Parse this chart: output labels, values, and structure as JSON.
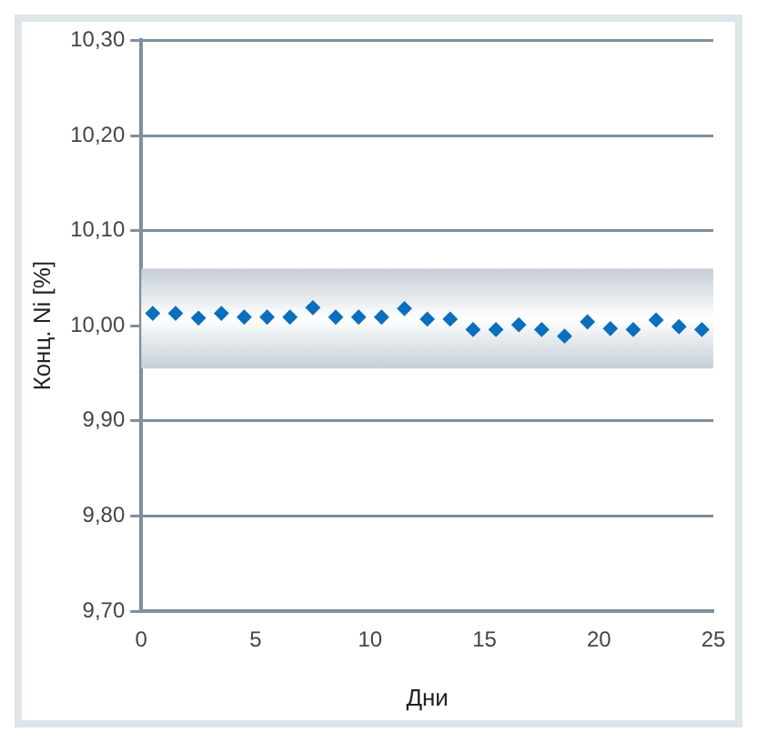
{
  "chart_data": {
    "type": "scatter",
    "xlabel": "Дни",
    "ylabel": "Конц. Ni [%]",
    "x": [
      0.5,
      1.5,
      2.5,
      3.5,
      4.5,
      5.5,
      6.5,
      7.5,
      8.5,
      9.5,
      10.5,
      11.5,
      12.5,
      13.5,
      14.5,
      15.5,
      16.5,
      17.5,
      18.5,
      19.5,
      20.5,
      21.5,
      22.5,
      23.5,
      24.5
    ],
    "series": [
      {
        "color": "#0a6fbd",
        "values": [
          10.013,
          10.013,
          10.008,
          10.013,
          10.009,
          10.009,
          10.009,
          10.019,
          10.009,
          10.009,
          10.009,
          10.018,
          10.007,
          10.007,
          9.996,
          9.996,
          10.001,
          9.996,
          9.989,
          10.004,
          9.997,
          9.996,
          10.006,
          9.999,
          9.996
        ]
      }
    ],
    "xlim": [
      0,
      25
    ],
    "xticks": [
      0,
      5,
      10,
      15,
      20,
      25
    ],
    "ylim": [
      9.7,
      10.3
    ],
    "yticks": [
      {
        "value": 9.7,
        "label": "9,70"
      },
      {
        "value": 9.8,
        "label": "9,80"
      },
      {
        "value": 9.9,
        "label": "9,90"
      },
      {
        "value": 10.0,
        "label": "10,00"
      },
      {
        "value": 10.1,
        "label": "10,10"
      },
      {
        "value": 10.2,
        "label": "10,20"
      },
      {
        "value": 10.3,
        "label": "10,30"
      }
    ],
    "grid": "y",
    "marker": "diamond",
    "legend": false,
    "bands": [
      {
        "axis": "y",
        "from": 9.955,
        "to": 10.06,
        "color": "#c5ced6"
      }
    ]
  }
}
